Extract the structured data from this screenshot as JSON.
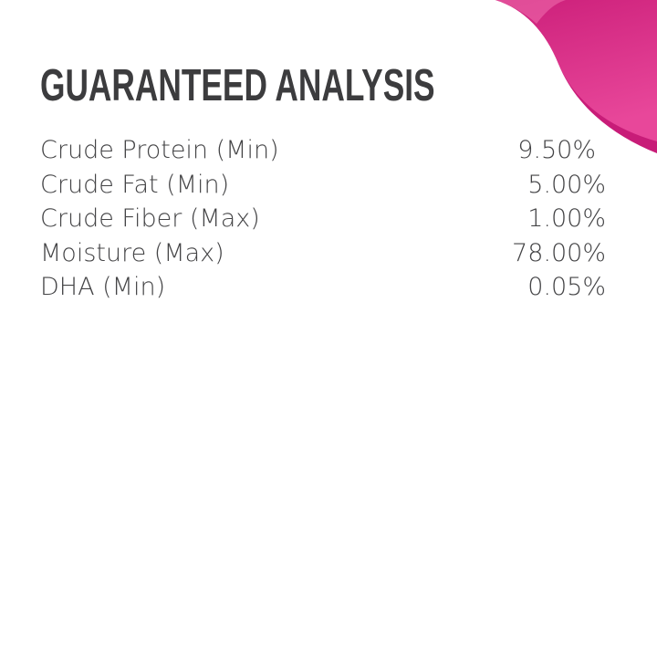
{
  "title": "GUARANTEED ANALYSIS",
  "accent_color": "#d0217a",
  "rows": [
    {
      "label": "Crude Protein (Min)",
      "value": "9.50%"
    },
    {
      "label": "Crude Fat (Min)",
      "value": "5.00%"
    },
    {
      "label": "Crude Fiber (Max)",
      "value": "1.00%"
    },
    {
      "label": "Moisture (Max)",
      "value": "78.00%"
    },
    {
      "label": "DHA (Min)",
      "value": "0.05%"
    }
  ]
}
